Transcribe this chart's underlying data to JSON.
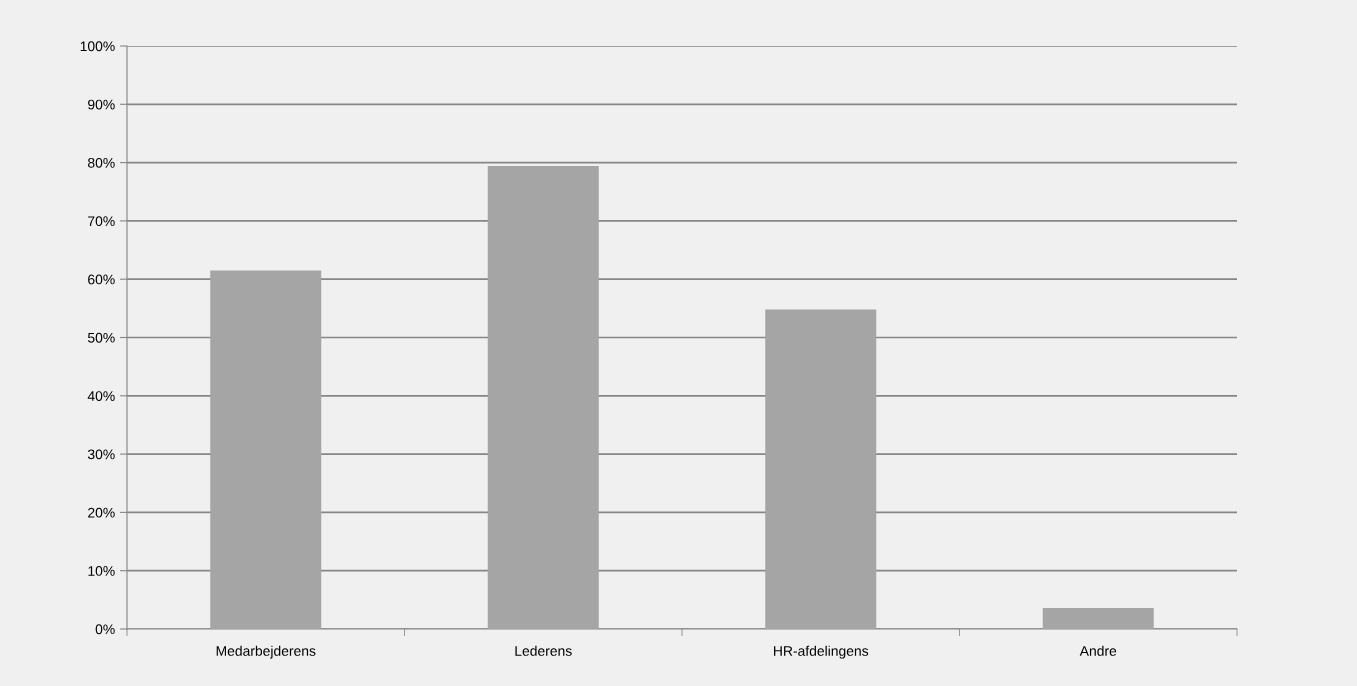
{
  "chart_data": {
    "type": "bar",
    "categories": [
      "Medarbejderens",
      "Lederens",
      "HR-afdelingens",
      "Andre"
    ],
    "values": [
      61.5,
      79.4,
      54.8,
      3.6
    ],
    "color": "#a5a5a5",
    "ylim": [
      0,
      100
    ],
    "yticks": [
      {
        "value": 0,
        "label": "0%"
      },
      {
        "value": 10,
        "label": "10%"
      },
      {
        "value": 20,
        "label": "20%"
      },
      {
        "value": 30,
        "label": "30%"
      },
      {
        "value": 40,
        "label": "40%"
      },
      {
        "value": 50,
        "label": "50%"
      },
      {
        "value": 60,
        "label": "60%"
      },
      {
        "value": 70,
        "label": "70%"
      },
      {
        "value": 80,
        "label": "80%"
      },
      {
        "value": 90,
        "label": "90%"
      },
      {
        "value": 100,
        "label": "100%"
      }
    ],
    "grid": "y"
  }
}
